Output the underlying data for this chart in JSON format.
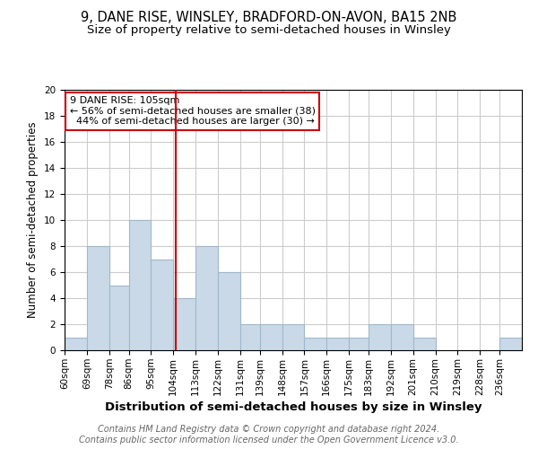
{
  "title": "9, DANE RISE, WINSLEY, BRADFORD-ON-AVON, BA15 2NB",
  "subtitle": "Size of property relative to semi-detached houses in Winsley",
  "xlabel": "Distribution of semi-detached houses by size in Winsley",
  "ylabel": "Number of semi-detached properties",
  "footer_line1": "Contains HM Land Registry data © Crown copyright and database right 2024.",
  "footer_line2": "Contains public sector information licensed under the Open Government Licence v3.0.",
  "property_size": 105,
  "property_label": "9 DANE RISE: 105sqm",
  "pct_smaller": 56,
  "pct_larger": 44,
  "n_smaller": 38,
  "n_larger": 30,
  "bin_labels": [
    "60sqm",
    "69sqm",
    "78sqm",
    "86sqm",
    "95sqm",
    "104sqm",
    "113sqm",
    "122sqm",
    "131sqm",
    "139sqm",
    "148sqm",
    "157sqm",
    "166sqm",
    "175sqm",
    "183sqm",
    "192sqm",
    "201sqm",
    "210sqm",
    "219sqm",
    "228sqm",
    "236sqm"
  ],
  "bin_edges": [
    60,
    69,
    78,
    86,
    95,
    104,
    113,
    122,
    131,
    139,
    148,
    157,
    166,
    175,
    183,
    192,
    201,
    210,
    219,
    228,
    236,
    245
  ],
  "counts": [
    1,
    8,
    5,
    10,
    7,
    4,
    8,
    6,
    2,
    2,
    2,
    1,
    1,
    1,
    2,
    2,
    1,
    0,
    0,
    0,
    1
  ],
  "bar_color": "#c9d9e8",
  "bar_edge_color": "#a0b8cc",
  "vline_x": 105,
  "vline_color": "#cc0000",
  "annotation_box_color": "#cc0000",
  "ylim": [
    0,
    20
  ],
  "yticks": [
    0,
    2,
    4,
    6,
    8,
    10,
    12,
    14,
    16,
    18,
    20
  ],
  "grid_color": "#cccccc",
  "background_color": "#ffffff",
  "title_fontsize": 10.5,
  "subtitle_fontsize": 9.5,
  "axis_label_fontsize": 8.5,
  "tick_fontsize": 7.5,
  "footer_fontsize": 7,
  "annotation_fontsize": 8
}
